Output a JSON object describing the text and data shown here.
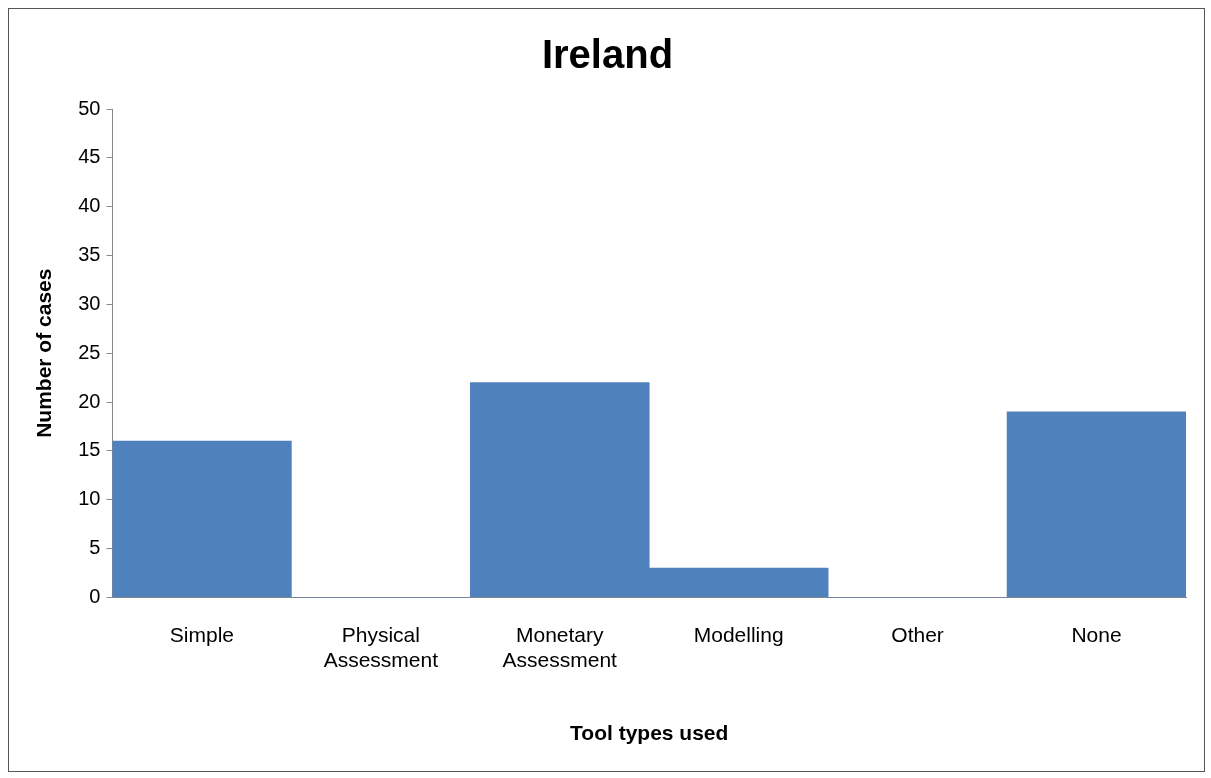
{
  "chart_data": {
    "type": "bar",
    "title": "Ireland",
    "xlabel": "Tool types used",
    "ylabel": "Number of cases",
    "categories": [
      "Simple",
      "Physical Assessment",
      "Monetary Assessment",
      "Modelling",
      "Other",
      "None"
    ],
    "values": [
      16,
      0,
      22,
      3,
      0,
      19
    ],
    "color": "#4f81bd",
    "ylim": [
      0,
      50
    ],
    "yticks": [
      0,
      5,
      10,
      15,
      20,
      25,
      30,
      35,
      40,
      45,
      50
    ],
    "grid": false,
    "legend": false
  }
}
